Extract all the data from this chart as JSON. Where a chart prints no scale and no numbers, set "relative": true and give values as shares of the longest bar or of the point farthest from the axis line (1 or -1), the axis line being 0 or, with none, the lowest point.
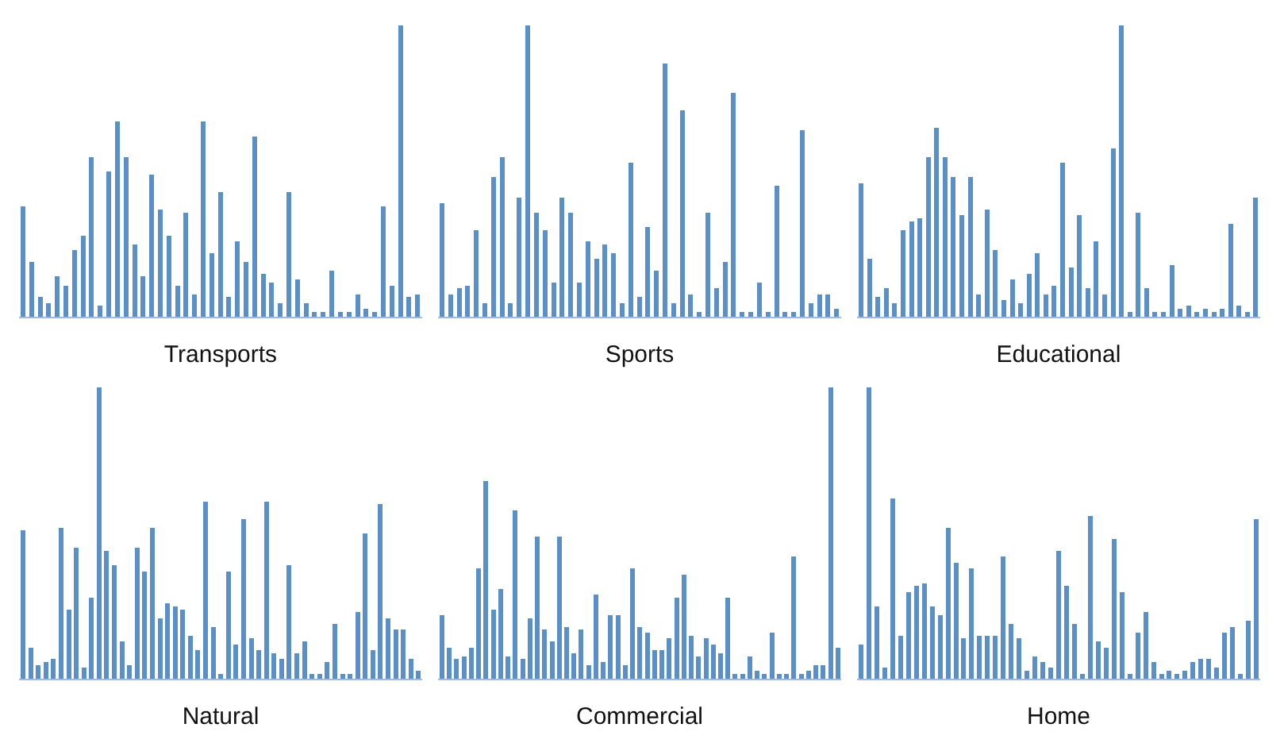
{
  "chart_data": [
    {
      "type": "bar",
      "relative": true,
      "xlabel": "Transports",
      "color": "#5b8fc8",
      "categories": [
        null,
        null,
        null,
        null,
        null,
        null,
        null,
        null,
        null,
        null,
        null,
        null,
        null,
        null,
        null,
        null,
        null,
        null,
        null,
        null,
        null,
        null,
        null,
        null,
        null,
        null,
        null,
        null,
        null,
        null,
        null,
        null,
        null,
        null,
        null,
        null,
        null,
        null,
        null,
        null,
        null,
        null,
        null,
        null,
        null,
        null,
        null
      ],
      "values": [
        0.38,
        0.19,
        0.07,
        0.05,
        0.14,
        0.11,
        0.23,
        0.28,
        0.55,
        0.04,
        0.5,
        0.67,
        0.55,
        0.25,
        0.14,
        0.49,
        0.37,
        0.28,
        0.11,
        0.36,
        0.08,
        0.67,
        0.22,
        0.43,
        0.07,
        0.26,
        0.19,
        0.62,
        0.15,
        0.12,
        0.05,
        0.43,
        0.13,
        0.05,
        0.02,
        0.02,
        0.16,
        0.02,
        0.02,
        0.08,
        0.03,
        0.02,
        0.38,
        0.11,
        1.0,
        0.07,
        0.08
      ]
    },
    {
      "type": "bar",
      "relative": true,
      "xlabel": "Sports",
      "color": "#5b8fc8",
      "categories": [
        null,
        null,
        null,
        null,
        null,
        null,
        null,
        null,
        null,
        null,
        null,
        null,
        null,
        null,
        null,
        null,
        null,
        null,
        null,
        null,
        null,
        null,
        null,
        null,
        null,
        null,
        null,
        null,
        null,
        null,
        null,
        null,
        null,
        null,
        null,
        null,
        null,
        null,
        null,
        null,
        null,
        null,
        null,
        null,
        null,
        null,
        null
      ],
      "values": [
        0.39,
        0.08,
        0.1,
        0.11,
        0.3,
        0.05,
        0.48,
        0.55,
        0.05,
        0.41,
        1.0,
        0.36,
        0.3,
        0.12,
        0.41,
        0.36,
        0.12,
        0.26,
        0.2,
        0.25,
        0.22,
        0.05,
        0.53,
        0.07,
        0.31,
        0.16,
        0.87,
        0.05,
        0.71,
        0.08,
        0.02,
        0.36,
        0.1,
        0.19,
        0.77,
        0.02,
        0.02,
        0.12,
        0.02,
        0.45,
        0.02,
        0.02,
        0.64,
        0.05,
        0.08,
        0.08,
        0.03
      ]
    },
    {
      "type": "bar",
      "relative": true,
      "xlabel": "Educational",
      "color": "#5b8fc8",
      "categories": [
        null,
        null,
        null,
        null,
        null,
        null,
        null,
        null,
        null,
        null,
        null,
        null,
        null,
        null,
        null,
        null,
        null,
        null,
        null,
        null,
        null,
        null,
        null,
        null,
        null,
        null,
        null,
        null,
        null,
        null,
        null,
        null,
        null,
        null,
        null,
        null,
        null,
        null,
        null,
        null,
        null,
        null,
        null,
        null,
        null,
        null,
        null,
        null
      ],
      "values": [
        0.46,
        0.2,
        0.07,
        0.1,
        0.05,
        0.3,
        0.33,
        0.34,
        0.55,
        0.65,
        0.55,
        0.48,
        0.35,
        0.48,
        0.08,
        0.37,
        0.23,
        0.06,
        0.13,
        0.05,
        0.15,
        0.22,
        0.08,
        0.11,
        0.53,
        0.17,
        0.35,
        0.1,
        0.26,
        0.08,
        0.58,
        1.0,
        0.02,
        0.36,
        0.1,
        0.02,
        0.02,
        0.18,
        0.03,
        0.04,
        0.02,
        0.03,
        0.02,
        0.03,
        0.32,
        0.04,
        0.02,
        0.41
      ]
    },
    {
      "type": "bar",
      "relative": true,
      "xlabel": "Natural",
      "color": "#5b8fc8",
      "categories": [
        null,
        null,
        null,
        null,
        null,
        null,
        null,
        null,
        null,
        null,
        null,
        null,
        null,
        null,
        null,
        null,
        null,
        null,
        null,
        null,
        null,
        null,
        null,
        null,
        null,
        null,
        null,
        null,
        null,
        null,
        null,
        null,
        null,
        null,
        null,
        null,
        null,
        null,
        null,
        null,
        null,
        null,
        null,
        null,
        null,
        null,
        null,
        null,
        null,
        null,
        null,
        null,
        null
      ],
      "values": [
        0.51,
        0.11,
        0.05,
        0.06,
        0.07,
        0.52,
        0.24,
        0.45,
        0.04,
        0.28,
        1.0,
        0.44,
        0.39,
        0.13,
        0.05,
        0.45,
        0.37,
        0.52,
        0.21,
        0.26,
        0.25,
        0.24,
        0.15,
        0.1,
        0.61,
        0.18,
        0.02,
        0.37,
        0.12,
        0.55,
        0.14,
        0.1,
        0.61,
        0.09,
        0.07,
        0.39,
        0.09,
        0.13,
        0.02,
        0.02,
        0.06,
        0.19,
        0.02,
        0.02,
        0.23,
        0.5,
        0.1,
        0.6,
        0.21,
        0.17,
        0.17,
        0.07,
        0.03
      ]
    },
    {
      "type": "bar",
      "relative": true,
      "xlabel": "Commercial",
      "color": "#5b8fc8",
      "categories": [
        null,
        null,
        null,
        null,
        null,
        null,
        null,
        null,
        null,
        null,
        null,
        null,
        null,
        null,
        null,
        null,
        null,
        null,
        null,
        null,
        null,
        null,
        null,
        null,
        null,
        null,
        null,
        null,
        null,
        null,
        null,
        null,
        null,
        null,
        null,
        null,
        null,
        null,
        null,
        null,
        null,
        null,
        null,
        null,
        null,
        null,
        null,
        null,
        null,
        null,
        null,
        null,
        null,
        null,
        null
      ],
      "values": [
        0.22,
        0.11,
        0.07,
        0.08,
        0.11,
        0.38,
        0.68,
        0.24,
        0.31,
        0.08,
        0.58,
        0.07,
        0.21,
        0.49,
        0.17,
        0.13,
        0.49,
        0.18,
        0.09,
        0.17,
        0.05,
        0.29,
        0.06,
        0.22,
        0.22,
        0.05,
        0.38,
        0.18,
        0.16,
        0.1,
        0.1,
        0.14,
        0.28,
        0.36,
        0.15,
        0.08,
        0.14,
        0.12,
        0.09,
        0.28,
        0.02,
        0.02,
        0.08,
        0.03,
        0.02,
        0.16,
        0.02,
        0.02,
        0.42,
        0.02,
        0.03,
        0.05,
        0.05,
        1.0,
        0.11
      ]
    },
    {
      "type": "bar",
      "relative": true,
      "xlabel": "Home",
      "color": "#5b8fc8",
      "categories": [
        null,
        null,
        null,
        null,
        null,
        null,
        null,
        null,
        null,
        null,
        null,
        null,
        null,
        null,
        null,
        null,
        null,
        null,
        null,
        null,
        null,
        null,
        null,
        null,
        null,
        null,
        null,
        null,
        null,
        null,
        null,
        null,
        null,
        null,
        null,
        null,
        null,
        null,
        null,
        null,
        null,
        null,
        null,
        null,
        null,
        null,
        null,
        null,
        null,
        null,
        null
      ],
      "values": [
        0.12,
        1.0,
        0.25,
        0.04,
        0.62,
        0.15,
        0.3,
        0.32,
        0.33,
        0.25,
        0.22,
        0.52,
        0.4,
        0.14,
        0.38,
        0.15,
        0.15,
        0.15,
        0.42,
        0.19,
        0.14,
        0.03,
        0.08,
        0.06,
        0.04,
        0.44,
        0.32,
        0.19,
        0.02,
        0.56,
        0.13,
        0.11,
        0.48,
        0.3,
        0.02,
        0.16,
        0.23,
        0.06,
        0.02,
        0.03,
        0.02,
        0.03,
        0.06,
        0.07,
        0.07,
        0.04,
        0.16,
        0.18,
        0.02,
        0.2,
        0.55
      ]
    }
  ]
}
